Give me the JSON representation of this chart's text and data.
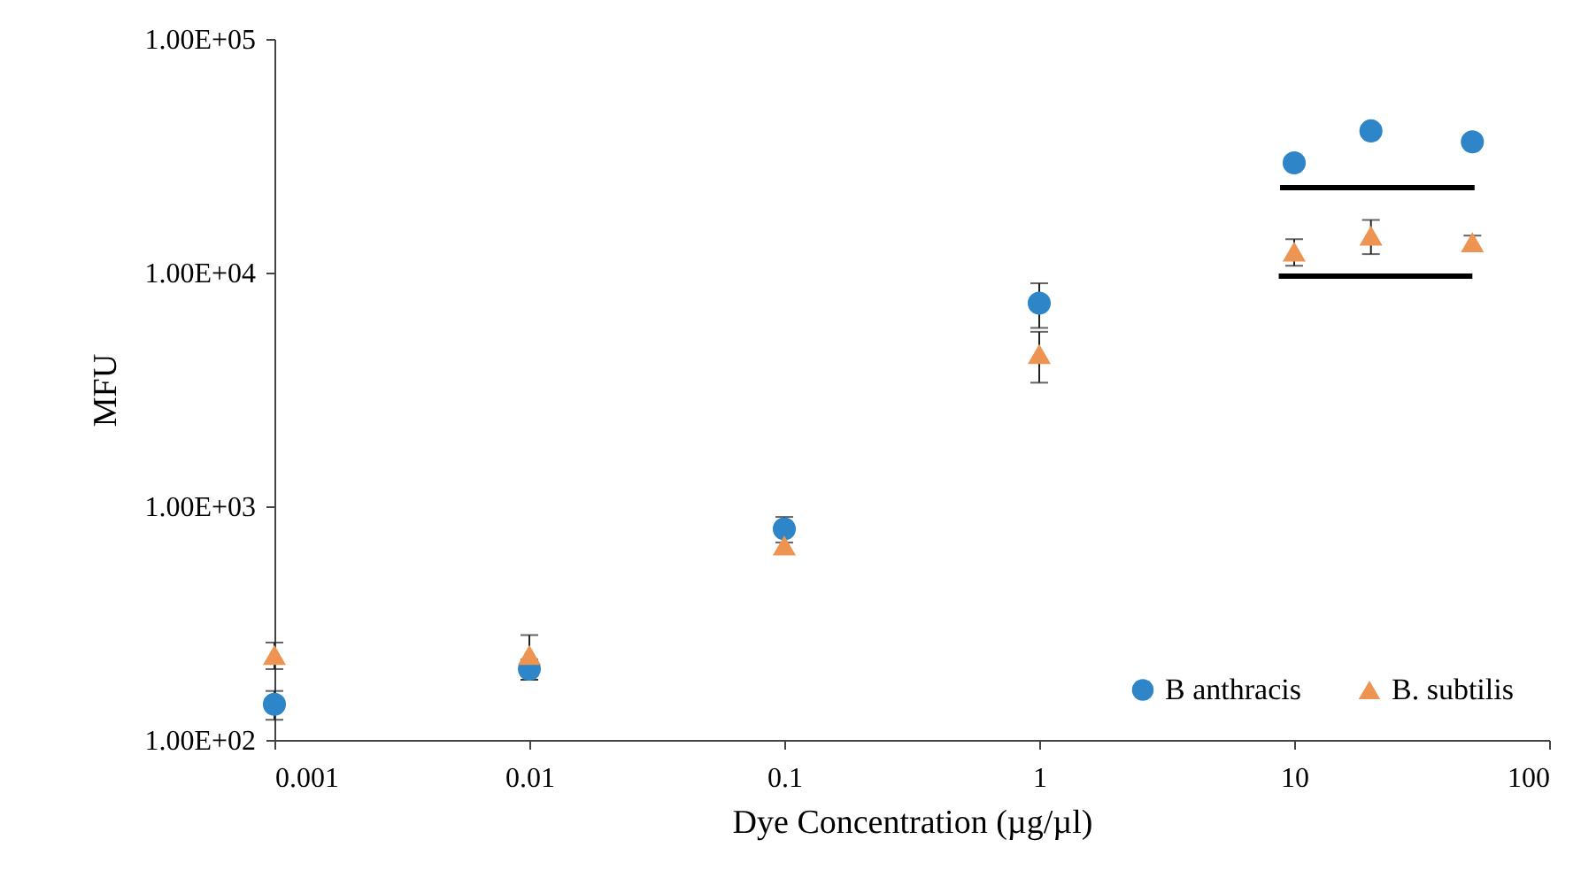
{
  "chart_data": {
    "type": "scatter",
    "xlabel": "Dye Concentration (µg/µl)",
    "ylabel": "MFU",
    "log": "xy",
    "legend": "bottom right",
    "grid": false,
    "xlim": [
      0.001,
      100
    ],
    "xticks": [
      0.001,
      0.01,
      0.1,
      1,
      10,
      100
    ],
    "ylim": [
      100,
      100000
    ],
    "yticks": [
      {
        "value": 100,
        "label": "1.00E+02"
      },
      {
        "value": 1000,
        "label": "1.00E+03"
      },
      {
        "value": 10000,
        "label": "1.00E+04"
      },
      {
        "value": 100000,
        "label": "1.00E+05"
      }
    ],
    "x": [
      0.001,
      0.01,
      0.1,
      1,
      10,
      20,
      50
    ],
    "series": [
      {
        "name": "B anthracis",
        "color": "#2e86c8",
        "marker": "circle",
        "values": [
          142,
          201,
          800,
          7400,
          29500,
          40400,
          36300
        ],
        "errors": [
          20,
          20,
          100,
          1600,
          null,
          null,
          null
        ]
      },
      {
        "name": "B. subtilis",
        "color": "#ee9452",
        "marker": "triangle",
        "values": [
          231,
          231,
          680,
          4480,
          12300,
          14400,
          13500
        ],
        "errors": [
          30,
          50,
          null,
          1100,
          1600,
          2400,
          900
        ]
      },
      {
        "type": "line",
        "color": "#000000",
        "x": [
          8.8,
          51
        ],
        "values": [
          23100,
          23100
        ]
      },
      {
        "type": "line",
        "color": "#000000",
        "x": [
          8.7,
          50
        ],
        "values": [
          9660,
          9660
        ]
      }
    ]
  }
}
